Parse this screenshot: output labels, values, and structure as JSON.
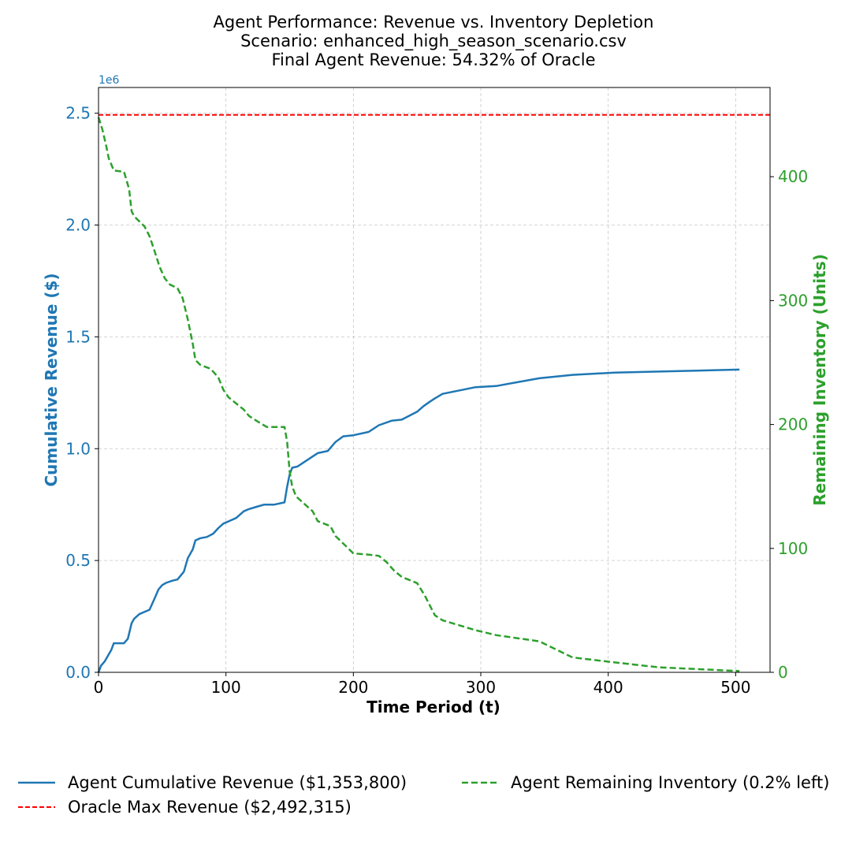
{
  "chart_data": {
    "type": "line",
    "title": [
      "Agent Performance: Revenue vs. Inventory Depletion",
      "Scenario: enhanced_high_season_scenario.csv",
      "Final Agent Revenue: 54.32% of Oracle"
    ],
    "xlabel": "Time Period (t)",
    "ylabel_left": "Cumulative Revenue ($)",
    "ylabel_right": "Remaining Inventory (Units)",
    "left_axis_offset_label": "1e6",
    "xlim": [
      0,
      527
    ],
    "ylim_left": [
      0,
      2.615
    ],
    "ylim_right": [
      0,
      472
    ],
    "x_ticks": [
      "0",
      "100",
      "200",
      "300",
      "400",
      "500"
    ],
    "y_ticks_left": [
      "0.0",
      "0.5",
      "1.0",
      "1.5",
      "2.0",
      "2.5"
    ],
    "y_ticks_right": [
      "0",
      "100",
      "200",
      "300",
      "400"
    ],
    "grid": true,
    "legend_position": "below",
    "colors": {
      "revenue": "#1f77b4",
      "oracle": "#ff0000",
      "inventory": "#2ca02c"
    },
    "series": [
      {
        "name": "Agent Cumulative Revenue ($1,353,800)",
        "axis": "left",
        "style": "solid",
        "color": "#1f77b4",
        "x": [
          0,
          2,
          5,
          8,
          10,
          12,
          15,
          20,
          23,
          26,
          28,
          32,
          36,
          40,
          44,
          47,
          50,
          53,
          58,
          62,
          67,
          70,
          74,
          76,
          80,
          85,
          90,
          94,
          98,
          102,
          108,
          114,
          118,
          124,
          130,
          138,
          146,
          148,
          150,
          152,
          156,
          168,
          172,
          180,
          186,
          192,
          200,
          212,
          220,
          230,
          238,
          250,
          255,
          260,
          264,
          270,
          296,
          312,
          346,
          372,
          405,
          440,
          503
        ],
        "y": [
          0.0,
          0.03,
          0.05,
          0.08,
          0.1,
          0.13,
          0.13,
          0.13,
          0.15,
          0.22,
          0.24,
          0.26,
          0.27,
          0.28,
          0.33,
          0.37,
          0.39,
          0.4,
          0.41,
          0.415,
          0.45,
          0.51,
          0.55,
          0.59,
          0.6,
          0.605,
          0.62,
          0.645,
          0.665,
          0.675,
          0.69,
          0.72,
          0.73,
          0.74,
          0.75,
          0.75,
          0.76,
          0.83,
          0.885,
          0.915,
          0.92,
          0.965,
          0.98,
          0.99,
          1.03,
          1.055,
          1.06,
          1.075,
          1.105,
          1.125,
          1.13,
          1.165,
          1.19,
          1.21,
          1.225,
          1.245,
          1.275,
          1.28,
          1.315,
          1.33,
          1.34,
          1.345,
          1.3538
        ]
      },
      {
        "name": "Oracle Max Revenue ($2,492,315)",
        "axis": "left",
        "style": "dashed",
        "color": "#ff0000",
        "x": [
          0,
          527
        ],
        "y": [
          2.492315,
          2.492315
        ]
      },
      {
        "name": "Agent Remaining Inventory (0.2% left)",
        "axis": "right",
        "style": "dashed",
        "color": "#2ca02c",
        "x": [
          0,
          3,
          6,
          8,
          12,
          20,
          24,
          26,
          28,
          32,
          36,
          40,
          44,
          48,
          52,
          56,
          62,
          66,
          70,
          74,
          76,
          80,
          88,
          94,
          98,
          102,
          108,
          114,
          118,
          124,
          132,
          146,
          148,
          150,
          152,
          155,
          168,
          172,
          182,
          186,
          192,
          196,
          200,
          212,
          220,
          226,
          232,
          238,
          250,
          256,
          260,
          264,
          270,
          296,
          312,
          346,
          372,
          405,
          440,
          503
        ],
        "y": [
          448,
          438,
          425,
          415,
          405,
          404,
          390,
          372,
          368,
          364,
          360,
          352,
          340,
          327,
          318,
          313,
          310,
          302,
          285,
          265,
          252,
          248,
          245,
          238,
          228,
          222,
          217,
          212,
          207,
          203,
          198,
          198,
          186,
          162,
          150,
          142,
          130,
          122,
          118,
          110,
          104,
          100,
          96,
          95,
          94,
          89,
          82,
          77,
          72,
          62,
          54,
          46,
          42,
          34,
          30,
          25,
          12,
          8,
          4,
          1
        ]
      }
    ],
    "legend": [
      {
        "label": "Agent Cumulative Revenue ($1,353,800)",
        "color": "#1f77b4",
        "style": "solid"
      },
      {
        "label": "Oracle Max Revenue ($2,492,315)",
        "color": "#ff0000",
        "style": "dashed"
      },
      {
        "label": "Agent Remaining Inventory (0.2% left)",
        "color": "#2ca02c",
        "style": "dashed"
      }
    ]
  }
}
